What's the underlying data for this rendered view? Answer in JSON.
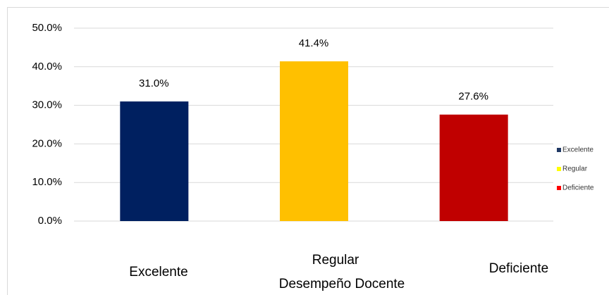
{
  "chart_data": {
    "type": "bar",
    "x_label": "Desempeño Docente",
    "categories": [
      "Excelente",
      "Regular",
      "Deficiente"
    ],
    "values": [
      31.0,
      41.4,
      27.6
    ],
    "value_labels": [
      "31.0%",
      "41.4%",
      "27.6%"
    ],
    "colors": [
      "#002060",
      "#ffc000",
      "#c00000"
    ],
    "legend": {
      "position": "right",
      "colors": [
        "#1f3864",
        "#ffff00",
        "#ff0000"
      ]
    },
    "ylim": [
      0,
      50
    ],
    "yticks": [
      {
        "value": 0,
        "label": "0.0%"
      },
      {
        "value": 10,
        "label": "10.0%"
      },
      {
        "value": 20,
        "label": "20.0%"
      },
      {
        "value": 30,
        "label": "30.0%"
      },
      {
        "value": 40,
        "label": "40.0%"
      },
      {
        "value": 50,
        "label": "50.0%"
      }
    ],
    "grid": true
  }
}
